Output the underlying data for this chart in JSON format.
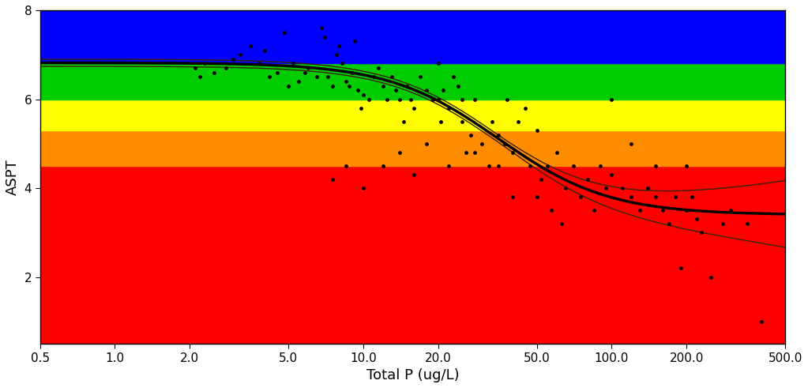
{
  "xlim": [
    0.5,
    500.0
  ],
  "ylim": [
    0.5,
    8.0
  ],
  "xlabel": "Total P (ug/L)",
  "ylabel": "ASPT",
  "yticks": [
    2,
    4,
    6,
    8
  ],
  "xticks": [
    0.5,
    1.0,
    2.0,
    5.0,
    10.0,
    20.0,
    50.0,
    100.0,
    200.0,
    500.0
  ],
  "xtick_labels": [
    "0.5",
    "1.0",
    "2.0",
    "5.0",
    "10.0",
    "20.0",
    "50.0",
    "100.0",
    "200.0",
    "500.0"
  ],
  "color_bands": [
    {
      "ymin": 0.5,
      "ymax": 4.5,
      "color": "#FF0000"
    },
    {
      "ymin": 4.5,
      "ymax": 5.3,
      "color": "#FF8C00"
    },
    {
      "ymin": 5.3,
      "ymax": 6.0,
      "color": "#FFFF00"
    },
    {
      "ymin": 6.0,
      "ymax": 6.8,
      "color": "#00CC00"
    },
    {
      "ymin": 6.8,
      "ymax": 8.0,
      "color": "#0000FF"
    }
  ],
  "scatter_points": [
    [
      2.1,
      6.7
    ],
    [
      2.2,
      6.5
    ],
    [
      2.3,
      6.8
    ],
    [
      2.5,
      6.6
    ],
    [
      2.8,
      6.7
    ],
    [
      3.0,
      6.9
    ],
    [
      3.2,
      7.0
    ],
    [
      3.5,
      7.2
    ],
    [
      3.8,
      6.8
    ],
    [
      4.0,
      7.1
    ],
    [
      4.2,
      6.5
    ],
    [
      4.5,
      6.6
    ],
    [
      4.8,
      7.5
    ],
    [
      5.0,
      6.3
    ],
    [
      5.2,
      6.8
    ],
    [
      5.5,
      6.4
    ],
    [
      5.8,
      6.6
    ],
    [
      6.0,
      6.7
    ],
    [
      6.5,
      6.5
    ],
    [
      6.8,
      7.6
    ],
    [
      7.0,
      7.4
    ],
    [
      7.2,
      6.5
    ],
    [
      7.5,
      6.3
    ],
    [
      7.8,
      7.0
    ],
    [
      8.0,
      7.2
    ],
    [
      8.2,
      6.8
    ],
    [
      8.5,
      6.4
    ],
    [
      8.8,
      6.3
    ],
    [
      9.0,
      6.6
    ],
    [
      9.2,
      7.3
    ],
    [
      9.5,
      6.2
    ],
    [
      9.8,
      5.8
    ],
    [
      10.0,
      6.1
    ],
    [
      10.5,
      6.0
    ],
    [
      11.0,
      6.5
    ],
    [
      11.5,
      6.7
    ],
    [
      12.0,
      6.3
    ],
    [
      12.5,
      6.0
    ],
    [
      13.0,
      6.5
    ],
    [
      13.5,
      6.2
    ],
    [
      14.0,
      6.0
    ],
    [
      14.5,
      5.5
    ],
    [
      15.0,
      6.3
    ],
    [
      15.5,
      6.0
    ],
    [
      16.0,
      5.8
    ],
    [
      17.0,
      6.5
    ],
    [
      18.0,
      6.2
    ],
    [
      19.0,
      6.0
    ],
    [
      20.0,
      6.8
    ],
    [
      20.0,
      6.0
    ],
    [
      20.5,
      5.5
    ],
    [
      21.0,
      6.2
    ],
    [
      22.0,
      5.8
    ],
    [
      23.0,
      6.5
    ],
    [
      24.0,
      6.3
    ],
    [
      25.0,
      5.5
    ],
    [
      26.0,
      4.8
    ],
    [
      27.0,
      5.2
    ],
    [
      28.0,
      6.0
    ],
    [
      30.0,
      5.0
    ],
    [
      32.0,
      4.5
    ],
    [
      33.0,
      5.5
    ],
    [
      35.0,
      5.2
    ],
    [
      37.0,
      5.0
    ],
    [
      38.0,
      6.0
    ],
    [
      40.0,
      4.8
    ],
    [
      42.0,
      5.5
    ],
    [
      45.0,
      5.8
    ],
    [
      47.0,
      4.5
    ],
    [
      50.0,
      5.3
    ],
    [
      50.0,
      3.8
    ],
    [
      52.0,
      4.2
    ],
    [
      55.0,
      4.5
    ],
    [
      57.0,
      3.5
    ],
    [
      60.0,
      4.8
    ],
    [
      63.0,
      3.2
    ],
    [
      65.0,
      4.0
    ],
    [
      70.0,
      4.5
    ],
    [
      75.0,
      3.8
    ],
    [
      80.0,
      4.2
    ],
    [
      85.0,
      3.5
    ],
    [
      90.0,
      4.5
    ],
    [
      95.0,
      4.0
    ],
    [
      100.0,
      4.3
    ],
    [
      110.0,
      4.0
    ],
    [
      120.0,
      3.8
    ],
    [
      130.0,
      3.5
    ],
    [
      140.0,
      4.0
    ],
    [
      150.0,
      3.8
    ],
    [
      160.0,
      3.5
    ],
    [
      170.0,
      3.2
    ],
    [
      180.0,
      3.8
    ],
    [
      190.0,
      2.2
    ],
    [
      200.0,
      3.5
    ],
    [
      210.0,
      3.8
    ],
    [
      220.0,
      3.3
    ],
    [
      230.0,
      3.0
    ],
    [
      250.0,
      2.0
    ],
    [
      280.0,
      3.2
    ],
    [
      300.0,
      3.5
    ],
    [
      350.0,
      3.2
    ],
    [
      400.0,
      1.0
    ],
    [
      7.5,
      4.2
    ],
    [
      8.5,
      4.5
    ],
    [
      10.0,
      4.0
    ],
    [
      12.0,
      4.5
    ],
    [
      14.0,
      4.8
    ],
    [
      16.0,
      4.3
    ],
    [
      18.0,
      5.0
    ],
    [
      22.0,
      4.5
    ],
    [
      25.0,
      6.0
    ],
    [
      28.0,
      4.8
    ],
    [
      35.0,
      4.5
    ],
    [
      40.0,
      3.8
    ],
    [
      100.0,
      6.0
    ],
    [
      120.0,
      5.0
    ],
    [
      150.0,
      4.5
    ],
    [
      200.0,
      4.5
    ]
  ],
  "L_low": 3.4,
  "L_high": 6.82,
  "k": 4.5,
  "x0_inflection": 35.0,
  "curve_color": "#000000",
  "ci_color": "#3B2000",
  "ci_scale_base": 0.08,
  "ci_scale_exp": 1.8,
  "background_color": "#FFFFFF"
}
